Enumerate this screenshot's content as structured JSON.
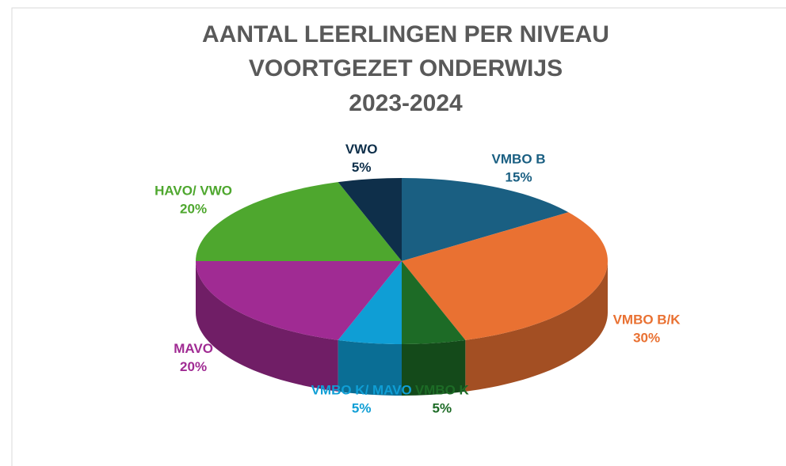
{
  "chart_data": {
    "type": "pie3d",
    "title": [
      "AANTAL LEERLINGEN PER NIVEAU",
      "VOORTGEZET ONDERWIJS",
      "2023-2024"
    ],
    "categories": [
      "VMBO B",
      "VMBO B/K",
      "VMBO K",
      "VMBO K/ MAVO",
      "MAVO",
      "HAVO/ VWO",
      "VWO"
    ],
    "values": [
      15,
      30,
      5,
      5,
      20,
      20,
      5
    ],
    "value_labels": [
      "15%",
      "30%",
      "5%",
      "5%",
      "20%",
      "20%",
      "5%"
    ],
    "colors": [
      "#1a5f82",
      "#e97132",
      "#1d6b26",
      "#0f9ed5",
      "#a02b93",
      "#4ea72e",
      "#0e2f4a"
    ]
  }
}
